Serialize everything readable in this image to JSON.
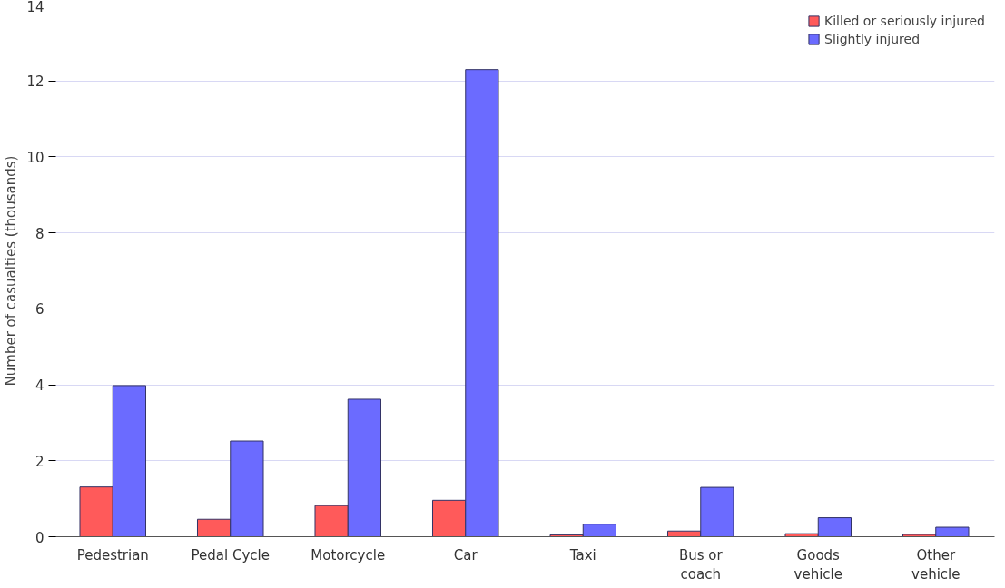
{
  "chart_data": {
    "type": "bar",
    "ylabel": "Number of casualties (thousands)",
    "categories": [
      "Pedestrian",
      "Pedal Cycle",
      "Motorcycle",
      "Car",
      "Taxi",
      "Bus or\ncoach",
      "Goods\nvehicle",
      "Other\nvehicle"
    ],
    "series": [
      {
        "name": "Killed or seriously injured",
        "color": "#ff5a5a",
        "values": [
          1.31,
          0.46,
          0.82,
          0.96,
          0.05,
          0.15,
          0.08,
          0.06
        ]
      },
      {
        "name": "Slightly injured",
        "color": "#6b6bff",
        "values": [
          3.98,
          2.52,
          3.62,
          12.3,
          0.33,
          1.3,
          0.5,
          0.25
        ]
      }
    ],
    "ylim": [
      0,
      14
    ],
    "yticks": [
      0,
      2,
      4,
      6,
      8,
      10,
      12,
      14
    ],
    "grid": "y",
    "legend": "top right"
  }
}
